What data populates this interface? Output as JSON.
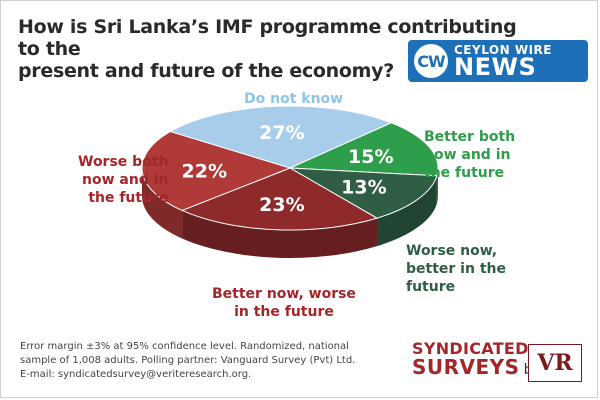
{
  "title_line1": "How is Sri Lanka’s IMF programme contributing to the",
  "title_line2": "present and future of the economy?",
  "logo": {
    "mark": "CW",
    "top": "CEYLON WIRE",
    "bottom": "NEWS"
  },
  "chart_data": {
    "type": "pie",
    "title": "How is Sri Lanka’s IMF programme contributing to the present and future of the economy?",
    "slices": [
      {
        "label": "Do not know",
        "lines": [
          "Do not know"
        ],
        "value": 27,
        "display": "27%",
        "color": "#a8cdea"
      },
      {
        "label": "Better both now and in the future",
        "lines": [
          "Better both",
          "now and in",
          "the future"
        ],
        "value": 15,
        "display": "15%",
        "color": "#2e9e4a"
      },
      {
        "label": "Worse now, better in the future",
        "lines": [
          "Worse now,",
          "better in the",
          "future"
        ],
        "value": 13,
        "display": "13%",
        "color": "#2f5e45"
      },
      {
        "label": "Better now, worse in the future",
        "lines": [
          "Better now, worse",
          "in the future"
        ],
        "value": 23,
        "display": "23%",
        "color": "#8f2a2c"
      },
      {
        "label": "Worse both now and in the future",
        "lines": [
          "Worse both",
          "now and in",
          "the future"
        ],
        "value": 22,
        "display": "22%",
        "color": "#b03a37"
      }
    ]
  },
  "footer": {
    "line1": "Error margin ±3% at 95% confidence level. Randomized, national",
    "line2": "sample of 1,008 adults. Polling partner: Vanguard Survey (Pvt) Ltd.",
    "line3": "E-mail: syndicatedsurvey@veriteresearch.org."
  },
  "brand": {
    "line1": "SYNDICATED",
    "line2": "SURVEYS",
    "by": "by",
    "mark": "VR"
  },
  "colors": {
    "label_blue": "#8ec5ea",
    "label_green": "#2e9e4a",
    "label_darkgreen": "#2f5e45",
    "label_red": "#a3262a"
  }
}
